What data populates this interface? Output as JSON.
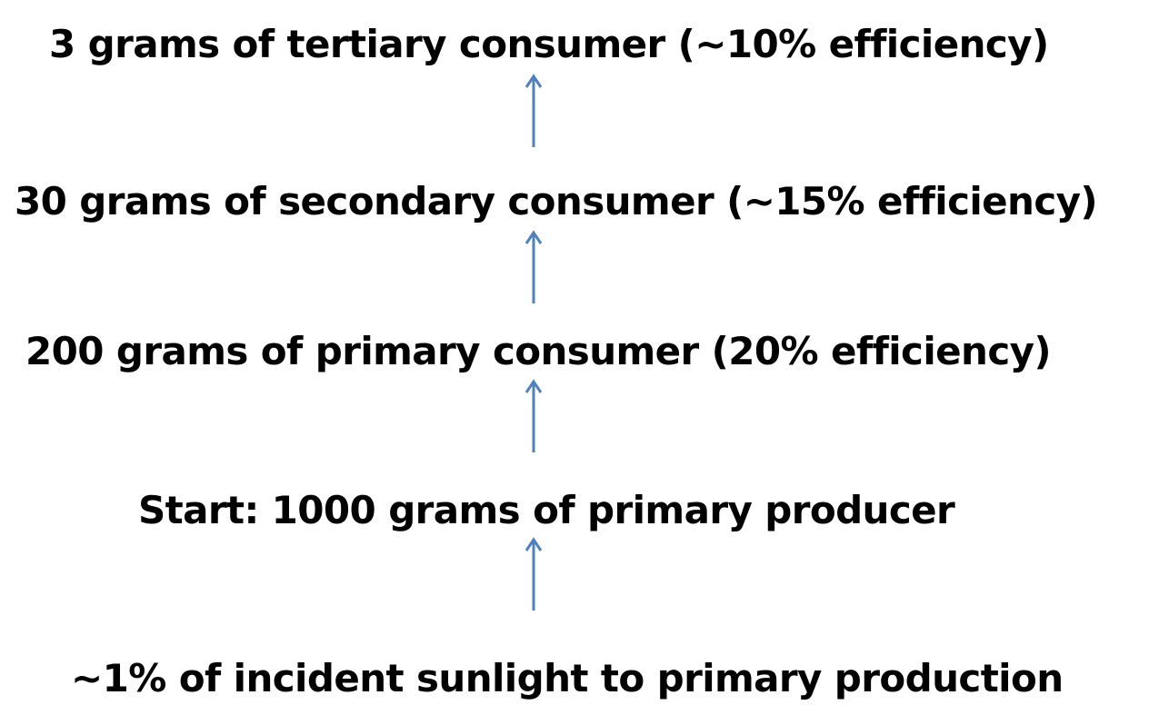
{
  "diagram": {
    "accent_color": "#4f81bd",
    "levels": [
      {
        "label": "3 grams of tertiary consumer (~10% efficiency)"
      },
      {
        "label": "30 grams of secondary consumer (~15% efficiency)"
      },
      {
        "label": "200 grams of primary consumer (20% efficiency)"
      },
      {
        "label": "Start: 1000 grams of primary producer"
      },
      {
        "label": "~1% of incident sunlight to primary production"
      }
    ],
    "arrows": [
      {
        "icon": "arrow-up-icon"
      },
      {
        "icon": "arrow-up-icon"
      },
      {
        "icon": "arrow-up-icon"
      },
      {
        "icon": "arrow-up-icon"
      }
    ]
  }
}
